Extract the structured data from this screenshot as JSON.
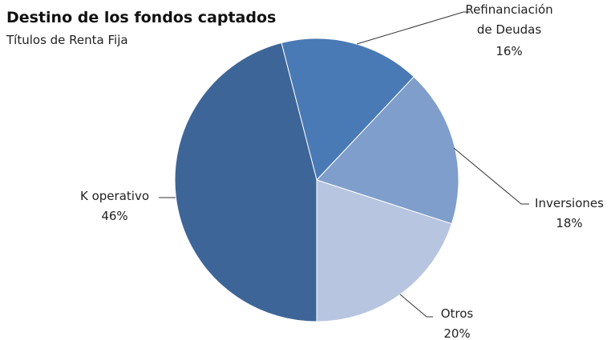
{
  "chart_data": {
    "type": "pie",
    "title": "Destino de los fondos captados",
    "subtitle": "Títulos de Renta Fija",
    "categories": [
      "Refinanciación de Deudas",
      "Inversiones",
      "Otros",
      "K operativo"
    ],
    "values": [
      16,
      18,
      20,
      46
    ],
    "value_labels": [
      "16%",
      "18%",
      "20%",
      "46%"
    ],
    "colors": [
      "#4a7ab5",
      "#7f9ecb",
      "#b7c5e0",
      "#3e6597"
    ]
  }
}
